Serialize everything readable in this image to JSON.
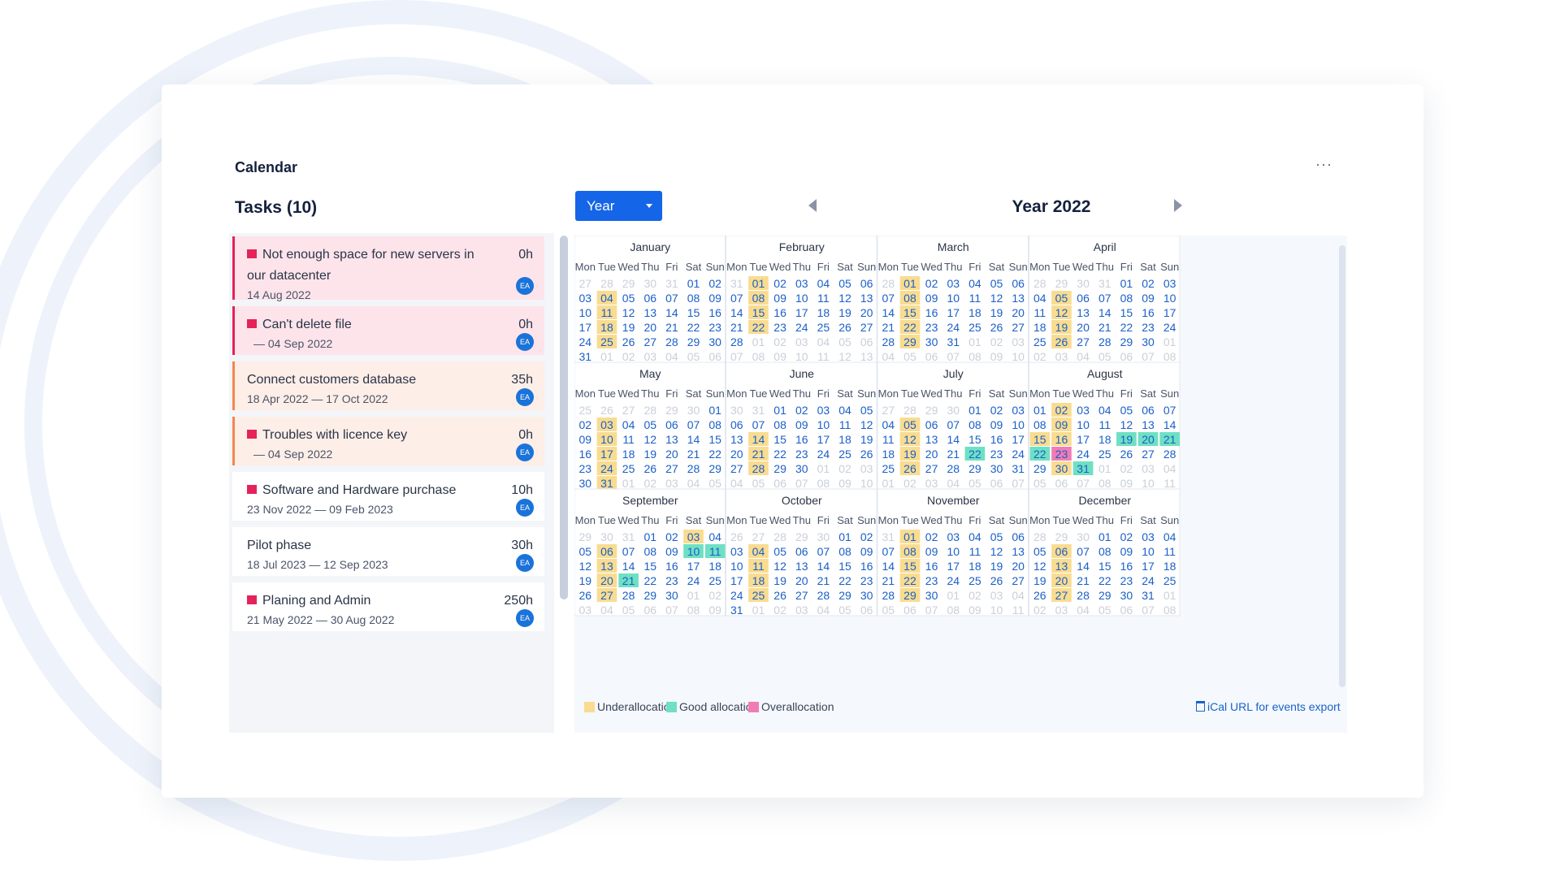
{
  "widget": {
    "title": "Calendar",
    "more_label": "···"
  },
  "tasks_panel": {
    "title": "Tasks (10)"
  },
  "tasks": [
    {
      "name": "Not enough space for new servers in our datacenter",
      "hours": "0h",
      "dates": "14 Aug 2022",
      "avatar": "EA",
      "flag": true,
      "status": "overdue"
    },
    {
      "name": "Can't delete file",
      "hours": "0h",
      "dates": "— 04 Sep 2022",
      "avatar": "EA",
      "flag": true,
      "status": "overdue"
    },
    {
      "name": "Connect customers database",
      "hours": "35h",
      "dates": "18 Apr 2022 — 17 Oct 2022",
      "avatar": "EA",
      "flag": false,
      "status": "warning"
    },
    {
      "name": "Troubles with licence key",
      "hours": "0h",
      "dates": "— 04 Sep 2022",
      "avatar": "EA",
      "flag": true,
      "status": "warning"
    },
    {
      "name": "Software and Hardware purchase",
      "hours": "10h",
      "dates": "23 Nov 2022 — 09 Feb 2023",
      "avatar": "EA",
      "flag": true,
      "status": "normal"
    },
    {
      "name": "Pilot phase",
      "hours": "30h",
      "dates": "18 Jul 2023 — 12 Sep 2023",
      "avatar": "EA",
      "flag": false,
      "status": "normal"
    },
    {
      "name": "Planing and Admin",
      "hours": "250h",
      "dates": "21 May 2022 — 30 Aug 2022",
      "avatar": "EA",
      "flag": true,
      "status": "normal"
    }
  ],
  "toolbar": {
    "view_label": "Year",
    "period_title": "Year 2022"
  },
  "calendar": {
    "year": 2022,
    "weekdays": [
      "Mon",
      "Tue",
      "Wed",
      "Thu",
      "Fri",
      "Sat",
      "Sun"
    ],
    "months": [
      {
        "name": "January",
        "under": [
          "01-04",
          "01-11",
          "01-18",
          "01-25"
        ],
        "good": [],
        "over": []
      },
      {
        "name": "February",
        "under": [
          "02-01",
          "02-08",
          "02-15",
          "02-22"
        ],
        "good": [],
        "over": []
      },
      {
        "name": "March",
        "under": [
          "03-01",
          "03-08",
          "03-15",
          "03-22",
          "03-29"
        ],
        "good": [],
        "over": []
      },
      {
        "name": "April",
        "under": [
          "04-05",
          "04-12",
          "04-19",
          "04-26"
        ],
        "good": [],
        "over": []
      },
      {
        "name": "May",
        "under": [
          "05-03",
          "05-10",
          "05-17",
          "05-24",
          "05-31"
        ],
        "good": [],
        "over": []
      },
      {
        "name": "June",
        "under": [
          "06-14",
          "06-21",
          "06-28"
        ],
        "good": [],
        "over": []
      },
      {
        "name": "July",
        "under": [
          "07-05",
          "07-12",
          "07-19",
          "07-26"
        ],
        "good": [
          "07-22"
        ],
        "over": []
      },
      {
        "name": "August",
        "under": [
          "08-02",
          "08-09",
          "08-15",
          "08-16",
          "08-30"
        ],
        "good": [
          "08-19",
          "08-20",
          "08-21",
          "08-22",
          "08-31"
        ],
        "over": [
          "08-23"
        ]
      },
      {
        "name": "September",
        "under": [
          "09-03",
          "09-06",
          "09-13",
          "09-20",
          "09-27"
        ],
        "good": [
          "09-10",
          "09-11",
          "09-21"
        ],
        "over": []
      },
      {
        "name": "October",
        "under": [
          "10-04",
          "10-11",
          "10-18",
          "10-25"
        ],
        "good": [],
        "over": []
      },
      {
        "name": "November",
        "under": [
          "11-01",
          "11-08",
          "11-15",
          "11-22",
          "11-29"
        ],
        "good": [],
        "over": []
      },
      {
        "name": "December",
        "under": [
          "12-06",
          "12-13",
          "12-20",
          "12-27"
        ],
        "good": [],
        "over": []
      }
    ]
  },
  "legend": [
    {
      "label": "Underallocation",
      "color": "#f9dc90"
    },
    {
      "label": "Good allocation",
      "color": "#6ee0c3"
    },
    {
      "label": "Overallocation",
      "color": "#f07cb5"
    }
  ],
  "ical_label": "iCal URL for events export",
  "colors": {
    "accent": "#1565e8",
    "day": "#1a5fc8",
    "dim": "#c9cfd9",
    "overdue_bg": "#fde4ea",
    "overdue_border": "#e5225a",
    "warning_bg": "#fdeee8",
    "warning_border": "#f2884b"
  }
}
